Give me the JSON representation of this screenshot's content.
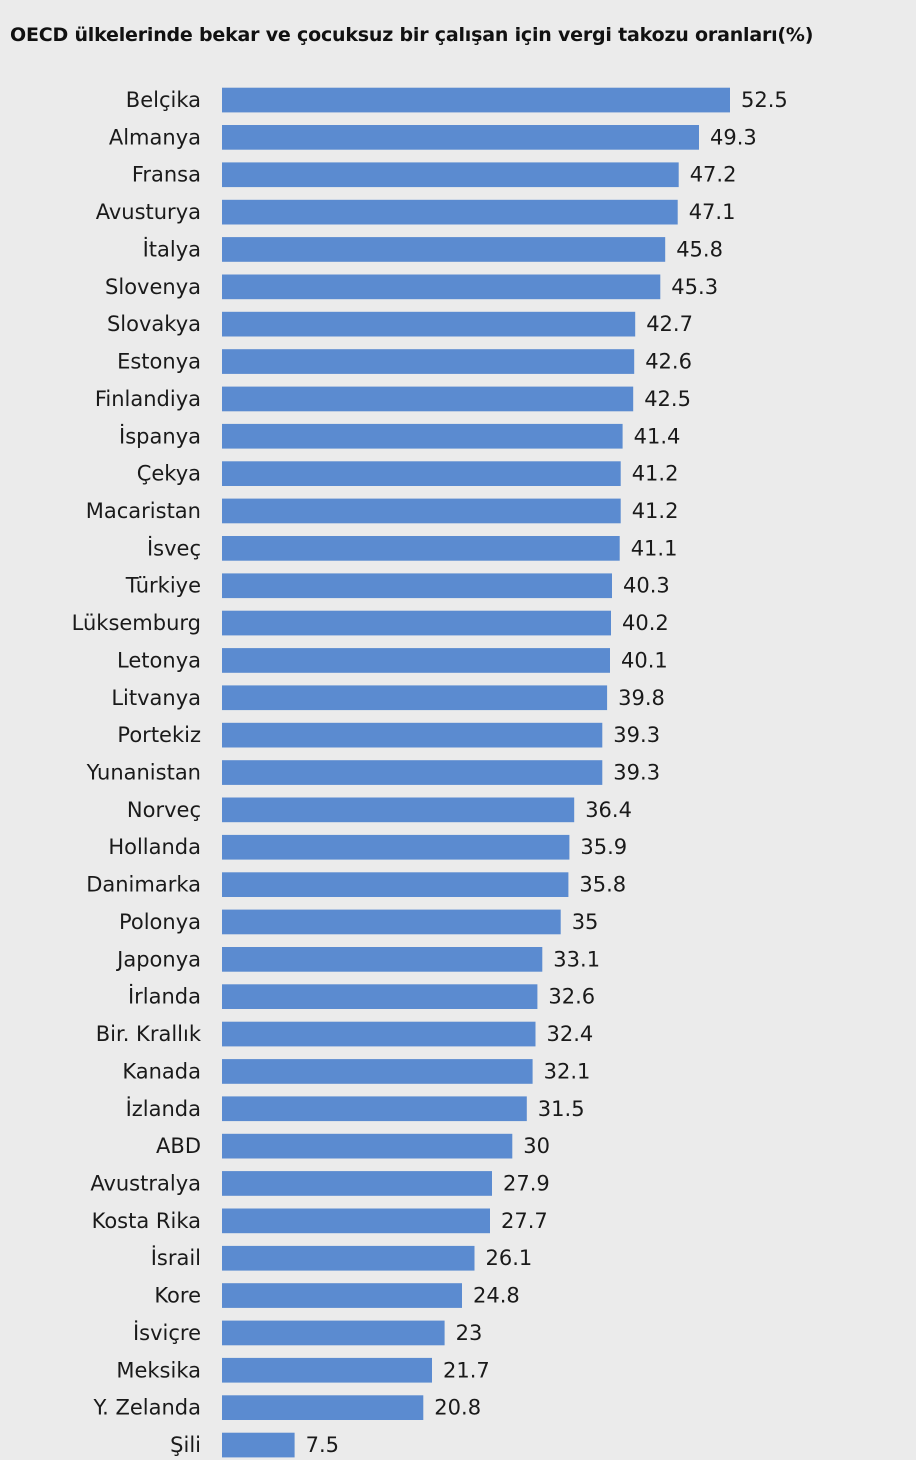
{
  "chart_data": {
    "type": "bar",
    "orientation": "horizontal",
    "title": "OECD ülkelerinde  bekar ve çocuksuz bir çalışan için vergi takozu oranları(%)",
    "xlabel": "",
    "ylabel": "",
    "categories": [
      "Belçika",
      "Almanya",
      "Fransa",
      "Avusturya",
      "İtalya",
      "Slovenya",
      "Slovakya",
      "Estonya",
      "Finlandiya",
      "İspanya",
      "Çekya",
      "Macaristan",
      "İsveç",
      "Türkiye",
      "Lüksemburg",
      "Letonya",
      "Litvanya",
      "Portekiz",
      "Yunanistan",
      "Norveç",
      "Hollanda",
      "Danimarka",
      "Polonya",
      "Japonya",
      "İrlanda",
      "Bir. Krallık",
      "Kanada",
      "İzlanda",
      "ABD",
      "Avustralya",
      "Kosta Rika",
      "İsrail",
      "Kore",
      "İsviçre",
      "Meksika",
      "Y. Zelanda",
      "Şili"
    ],
    "values": [
      52.5,
      49.3,
      47.2,
      47.1,
      45.8,
      45.3,
      42.7,
      42.6,
      42.5,
      41.4,
      41.2,
      41.2,
      41.1,
      40.3,
      40.2,
      40.1,
      39.8,
      39.3,
      39.3,
      36.4,
      35.9,
      35.8,
      35,
      33.1,
      32.6,
      32.4,
      32.1,
      31.5,
      30,
      27.9,
      27.7,
      26.1,
      24.8,
      23,
      21.7,
      20.8,
      7.5
    ],
    "value_labels": [
      "52.5",
      "49.3",
      "47.2",
      "47.1",
      "45.8",
      "45.3",
      "42.7",
      "42.6",
      "42.5",
      "41.4",
      "41.2",
      "41.2",
      "41.1",
      "40.3",
      "40.2",
      "40.1",
      "39.8",
      "39.3",
      "39.3",
      "36.4",
      "35.9",
      "35.8",
      "35",
      "33.1",
      "32.6",
      "32.4",
      "32.1",
      "31.5",
      "30",
      "27.9",
      "27.7",
      "26.1",
      "24.8",
      "23",
      "21.7",
      "20.8",
      "7.5"
    ],
    "xlim": [
      0,
      52.5
    ],
    "grid": false,
    "legend": "none",
    "bar_color": "#5b8bd0",
    "background_color": "#ebebeb"
  }
}
